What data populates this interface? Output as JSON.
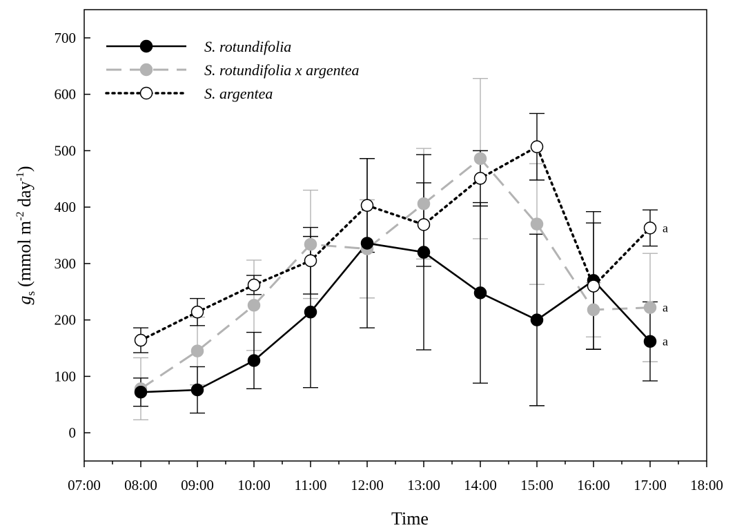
{
  "chart_data": {
    "type": "line",
    "xlabel": "Time",
    "ylabel_symbol": "g",
    "ylabel_symbol_sub": "s",
    "ylabel_units_part1": "(mmol m",
    "ylabel_units_sup1": "-2",
    "ylabel_units_part2": " day",
    "ylabel_units_sup2": "-1",
    "ylabel_units_part3": ")",
    "x_ticks": [
      "07:00",
      "08:00",
      "09:00",
      "10:00",
      "11:00",
      "12:00",
      "13:00",
      "14:00",
      "15:00",
      "16:00",
      "17:00",
      "18:00"
    ],
    "x_range": [
      7,
      18
    ],
    "ylim": [
      -50,
      750
    ],
    "y_ticks": [
      0,
      100,
      200,
      300,
      400,
      500,
      600,
      700
    ],
    "x": [
      8,
      9,
      10,
      11,
      12,
      13,
      14,
      15,
      16,
      17
    ],
    "legend_position": "top-left",
    "series": [
      {
        "name": "S. rotundifolia",
        "style": "solid",
        "marker": "filled-circle",
        "color": "#000000",
        "values": [
          72,
          76,
          128,
          214,
          336,
          320,
          248,
          200,
          270,
          162
        ],
        "error": [
          25,
          41,
          50,
          134,
          150,
          173,
          160,
          152,
          122,
          70
        ],
        "annotation": "a"
      },
      {
        "name": "S. rotundifolia x argentea",
        "style": "dashed",
        "marker": "grey-circle",
        "color": "#b3b3b3",
        "values": [
          78,
          145,
          226,
          334,
          326,
          406,
          486,
          370,
          218,
          222
        ],
        "error": [
          55,
          60,
          80,
          96,
          87,
          98,
          142,
          107,
          48,
          96
        ],
        "annotation": "a"
      },
      {
        "name": "S. argentea",
        "style": "dotted",
        "marker": "open-circle",
        "color": "#000000",
        "values": [
          164,
          214,
          262,
          305,
          403,
          369,
          451,
          507,
          260,
          363
        ],
        "error": [
          22,
          24,
          17,
          59,
          83,
          74,
          49,
          59,
          112,
          32
        ],
        "annotation": "a"
      }
    ]
  }
}
